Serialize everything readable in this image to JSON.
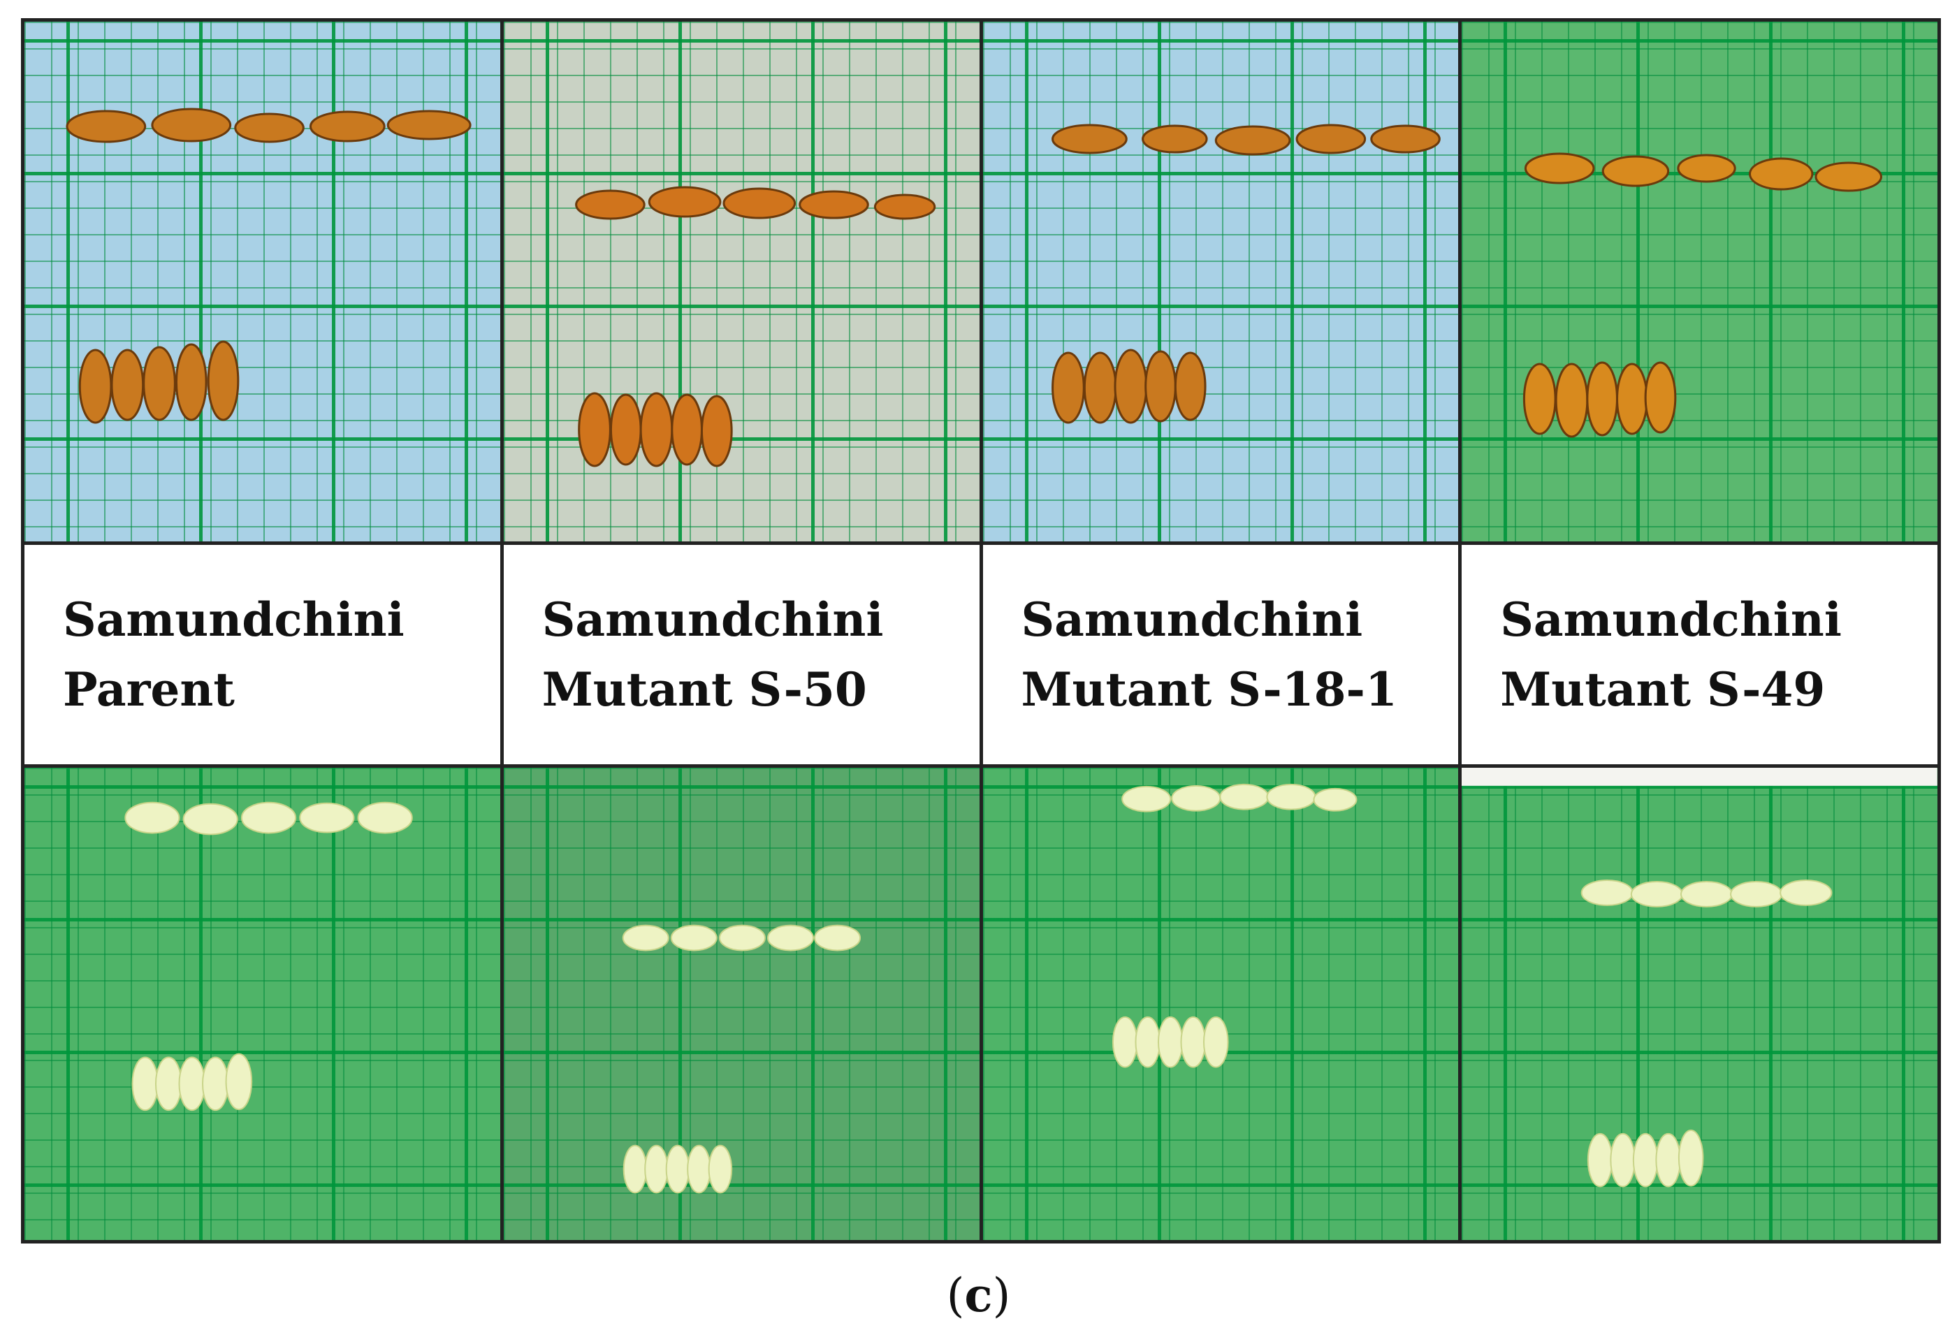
{
  "figure": {
    "columns": [
      {
        "line1": "Samundchini",
        "line2": "Parent"
      },
      {
        "line1": "Samundchini",
        "line2": "Mutant S-50"
      },
      {
        "line1": "Samundchini",
        "line2": "Mutant S-18-1"
      },
      {
        "line1": "Samundchini",
        "line2": "Mutant S-49"
      }
    ],
    "caption_open": "(",
    "caption_letter": "c",
    "caption_close": ")"
  },
  "colors": {
    "paddy_grain": "#c9791f",
    "milled_grain": "#f0f3c6",
    "grid_line": "#1c9a47"
  }
}
